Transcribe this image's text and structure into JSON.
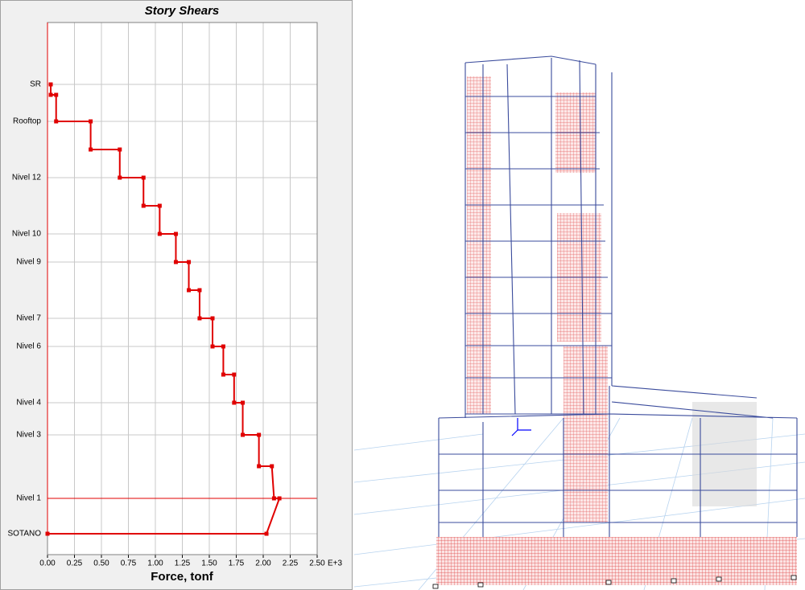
{
  "chart_data": {
    "type": "step-line",
    "title": "Story Shears",
    "x_label": "Force, tonf",
    "xtick_suffix": "E+3",
    "levels": [
      "SR",
      null,
      "Rooftop",
      null,
      "Nivel 12",
      null,
      "Nivel 10",
      "Nivel 9",
      null,
      "Nivel 7",
      "Nivel 6",
      null,
      "Nivel 4",
      "Nivel 3",
      null,
      "Nivel 1",
      "SOTANO"
    ],
    "series": [
      {
        "color": "#e00000",
        "top": [
          0.03,
          0.08,
          0.4,
          0.67,
          0.89,
          1.04,
          1.19,
          1.31,
          1.41,
          1.53,
          1.63,
          1.73,
          1.81,
          1.96,
          2.08,
          2.15
        ],
        "bottom": [
          0.03,
          0.08,
          0.4,
          0.67,
          0.89,
          1.04,
          1.19,
          1.31,
          1.41,
          1.53,
          1.63,
          1.73,
          1.81,
          1.96,
          2.1,
          2.03
        ]
      }
    ],
    "xlim": [
      0,
      2.5
    ],
    "xticks": [
      {
        "value": 0,
        "label": "0.00"
      },
      {
        "value": 0.25,
        "label": "0.25"
      },
      {
        "value": 0.5,
        "label": "0.50"
      },
      {
        "value": 0.75,
        "label": "0.75"
      },
      {
        "value": 1,
        "label": "1.00"
      },
      {
        "value": 1.25,
        "label": "1.25"
      },
      {
        "value": 1.5,
        "label": "1.50"
      },
      {
        "value": 1.75,
        "label": "1.75"
      },
      {
        "value": 2,
        "label": "2.00"
      },
      {
        "value": 2.25,
        "label": "2.25"
      },
      {
        "value": 2.5,
        "label": "2.50"
      }
    ],
    "grid": true
  }
}
